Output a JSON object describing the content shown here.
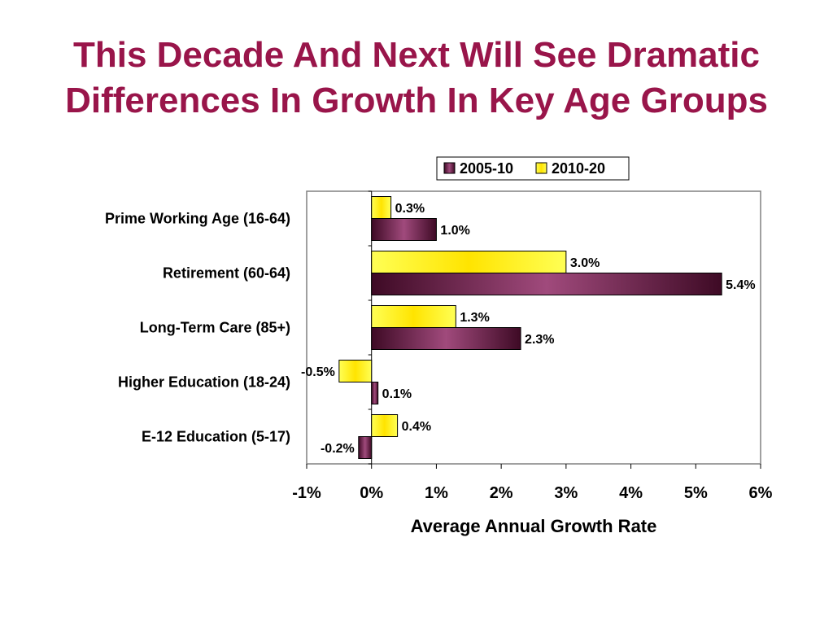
{
  "slide": {
    "title_line1": "This Decade And Next Will See Dramatic",
    "title_line2": "Differences In Growth In Key Age Groups"
  },
  "chart_data": {
    "type": "bar",
    "orientation": "horizontal",
    "categories": [
      "Prime Working Age (16-64)",
      "Retirement (60-64)",
      "Long-Term Care (85+)",
      "Higher Education (18-24)",
      "E-12 Education (5-17)"
    ],
    "series": [
      {
        "name": "2005-10",
        "values": [
          1.0,
          5.4,
          2.3,
          0.1,
          -0.2
        ],
        "labels": [
          "1.0%",
          "5.4%",
          "2.3%",
          "0.1%",
          "-0.2%"
        ],
        "color": "#7a1f4f"
      },
      {
        "name": "2010-20",
        "values": [
          0.3,
          3.0,
          1.3,
          -0.5,
          0.4
        ],
        "labels": [
          "0.3%",
          "3.0%",
          "1.3%",
          "-0.5%",
          "0.4%"
        ],
        "color": "#ffff33"
      }
    ],
    "xlim": [
      -1,
      6
    ],
    "xticks": [
      "-1%",
      "0%",
      "1%",
      "2%",
      "3%",
      "4%",
      "5%",
      "6%"
    ],
    "xlabel": "Average Annual Growth Rate",
    "ylabel": "",
    "legend": "top-right",
    "grid": false
  }
}
